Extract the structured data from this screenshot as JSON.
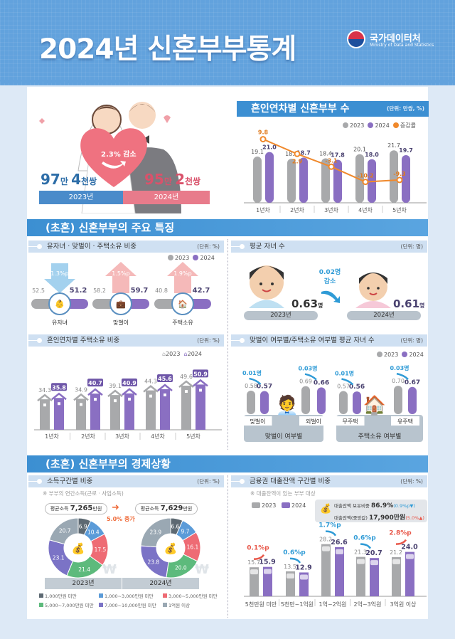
{
  "header": {
    "title": "2024년 신혼부부통계",
    "logo_text": "국가데이터처",
    "logo_sub": "Ministry of Data and Statistics"
  },
  "hero": {
    "change": "2.3% 감소",
    "y2023": {
      "a": "97",
      "au": "만 ",
      "b": "4",
      "bu": "천쌍",
      "year": "2023년"
    },
    "y2024": {
      "a": "95",
      "au": "만 ",
      "b": "2",
      "bu": "천쌍",
      "year": "2024년"
    }
  },
  "sections": {
    "features": "(초혼) 신혼부부의 주요 특징",
    "economy": "(초혼) 신혼부부의 경제상황"
  },
  "ratios": {
    "title": "유자녀 · 맞벌이 · 주택소유 비중",
    "unit": "(단위: %)",
    "legend": [
      "2023",
      "2024"
    ],
    "items": [
      {
        "label": "유자녀",
        "v2023": "52.5",
        "v2024": "51.2",
        "change": "1.3%p",
        "direction": "down",
        "icon": "baby-icon"
      },
      {
        "label": "맞벌이",
        "v2023": "58.2",
        "v2024": "59.7",
        "change": "1.5%p",
        "direction": "up",
        "icon": "briefcase-icon"
      },
      {
        "label": "주택소유",
        "v2023": "40.8",
        "v2024": "42.7",
        "change": "1.9%p",
        "direction": "up",
        "icon": "house-icon"
      }
    ]
  },
  "avg_children": {
    "title": "평균 자녀 수",
    "unit": "(단위: 명)",
    "v2023": "0.63",
    "v2024": "0.61",
    "suffix": "명",
    "change": "0.02명",
    "change_label": "감소",
    "year2023": "2023년",
    "year2024": "2024년"
  },
  "colors": {
    "y2023": "#a8a9ab",
    "y2024": "#8a6fc2",
    "rate": "#f0892c",
    "up": "#e8584a",
    "down": "#2f9bd6"
  },
  "chart_data": [
    {
      "type": "bar",
      "title": "혼인연차별 신혼부부 수",
      "unit": "(단위: 만쌍, %)",
      "categories": [
        "1년차",
        "2년차",
        "3년차",
        "4년차",
        "5년차"
      ],
      "series": [
        {
          "name": "2023",
          "values": [
            19.1,
            18.2,
            18.4,
            20.1,
            21.7
          ]
        },
        {
          "name": "2024",
          "values": [
            21.0,
            18.7,
            17.8,
            18.0,
            19.7
          ]
        },
        {
          "name": "증감률",
          "type": "line",
          "values": [
            9.8,
            2.9,
            -3.1,
            -10.2,
            -9.3
          ]
        }
      ]
    },
    {
      "type": "bar",
      "title": "혼인연차별 주택소유 비중",
      "unit": "(단위: %)",
      "categories": [
        "1년차",
        "2년차",
        "3년차",
        "4년차",
        "5년차"
      ],
      "series": [
        {
          "name": "2023",
          "values": [
            34.3,
            34.9,
            39.1,
            44.3,
            49.6
          ]
        },
        {
          "name": "2024",
          "values": [
            35.8,
            40.7,
            40.9,
            45.6,
            50.9
          ]
        }
      ]
    },
    {
      "type": "bar",
      "title": "맞벌이 여부별/주택소유 여부별 평균 자녀 수",
      "unit": "(단위: 명)",
      "groups": [
        "맞벌이 여부별",
        "주택소유 여부별"
      ],
      "categories": [
        "맞벌이",
        "외벌이",
        "무주택",
        "유주택"
      ],
      "changes": [
        "0.01명",
        "0.03명",
        "0.01명",
        "0.03명"
      ],
      "series": [
        {
          "name": "2023",
          "values": [
            0.58,
            0.69,
            0.57,
            0.7
          ]
        },
        {
          "name": "2024",
          "values": [
            0.57,
            0.66,
            0.56,
            0.67
          ]
        }
      ]
    },
    {
      "type": "pie",
      "title": "소득구간별 비중",
      "unit": "(단위: %)",
      "note": "※ 부부의 연간소득(근로 · 사업소득)",
      "avg_label": "평균소득",
      "avg2023": "7,265",
      "avg2024": "7,629",
      "avg_unit": "만원",
      "change": "5.0%",
      "change_label": "증가",
      "years": [
        "2023년",
        "2024년"
      ],
      "categories": [
        "1,000만원 미만",
        "1,000~3,000만원 미만",
        "3,000~5,000만원 미만",
        "5,000~7,000만원 미만",
        "7,000~10,000만원 미만",
        "1억원 이상"
      ],
      "colors": [
        "#5d6972",
        "#5b9bd8",
        "#ee6b74",
        "#5dba7c",
        "#7b73c6",
        "#9aa8b3"
      ],
      "series": [
        {
          "name": "2023년",
          "values": [
            6.9,
            10.4,
            17.5,
            21.4,
            23.1,
            20.7
          ]
        },
        {
          "name": "2024년",
          "values": [
            6.6,
            9.7,
            16.1,
            20.0,
            23.8,
            23.9
          ]
        }
      ]
    },
    {
      "type": "bar",
      "title": "금융권 대출잔액 구간별 비중",
      "unit": "(단위: %)",
      "note": "※ 대출잔액이 있는 부부 대상",
      "info": {
        "share_label": "대출잔액 보유비중",
        "share": "86.9%",
        "share_change": "(0.9%p▼)",
        "median_label": "대출잔액(중앙값)",
        "median": "17,900만원",
        "median_change": "(5.0%▲)"
      },
      "categories": [
        "5천만원 미만",
        "5천만~1억원",
        "1억~2억원",
        "2억~3억원",
        "3억원 이상"
      ],
      "changes": [
        "0.1%p",
        "0.6%p",
        "1.7%p",
        "0.6%p",
        "2.8%p"
      ],
      "directions": [
        "up",
        "down",
        "down",
        "down",
        "up"
      ],
      "series": [
        {
          "name": "2023",
          "values": [
            15.7,
            13.5,
            28.2,
            21.3,
            21.2
          ]
        },
        {
          "name": "2024",
          "values": [
            15.9,
            12.9,
            26.6,
            20.7,
            24.0
          ]
        }
      ]
    }
  ]
}
